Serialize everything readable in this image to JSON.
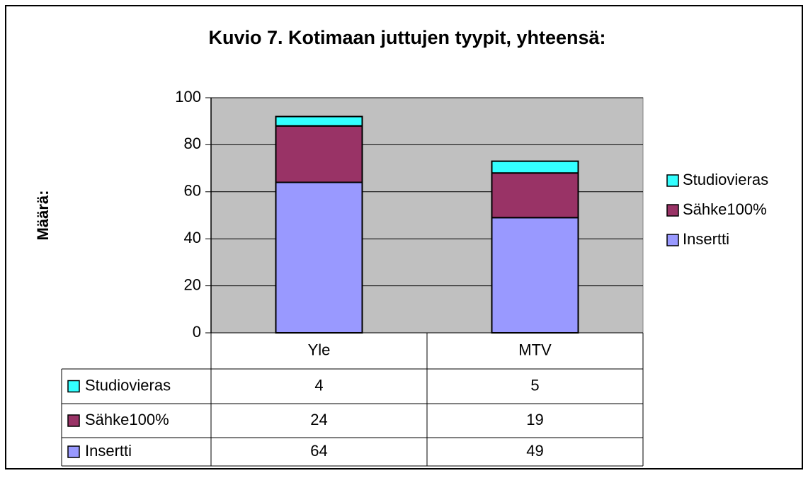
{
  "chart_data": {
    "type": "stacked_bar",
    "title": "Kuvio 7. Kotimaan juttujen tyypit, yhteensä:",
    "y_label": "Määrä:",
    "categories": [
      "Yle",
      "MTV"
    ],
    "series": [
      {
        "name": "Studiovieras",
        "color": "#33ffff",
        "values": [
          4,
          5
        ]
      },
      {
        "name": "Sähke100%",
        "color": "#993366",
        "values": [
          24,
          19
        ]
      },
      {
        "name": "Insertti",
        "color": "#9999ff",
        "values": [
          64,
          49
        ]
      }
    ],
    "ylim": [
      0,
      100
    ],
    "yticks": [
      0,
      20,
      40,
      60,
      80,
      100
    ],
    "grid": true,
    "legend": "right",
    "data_table": true
  }
}
